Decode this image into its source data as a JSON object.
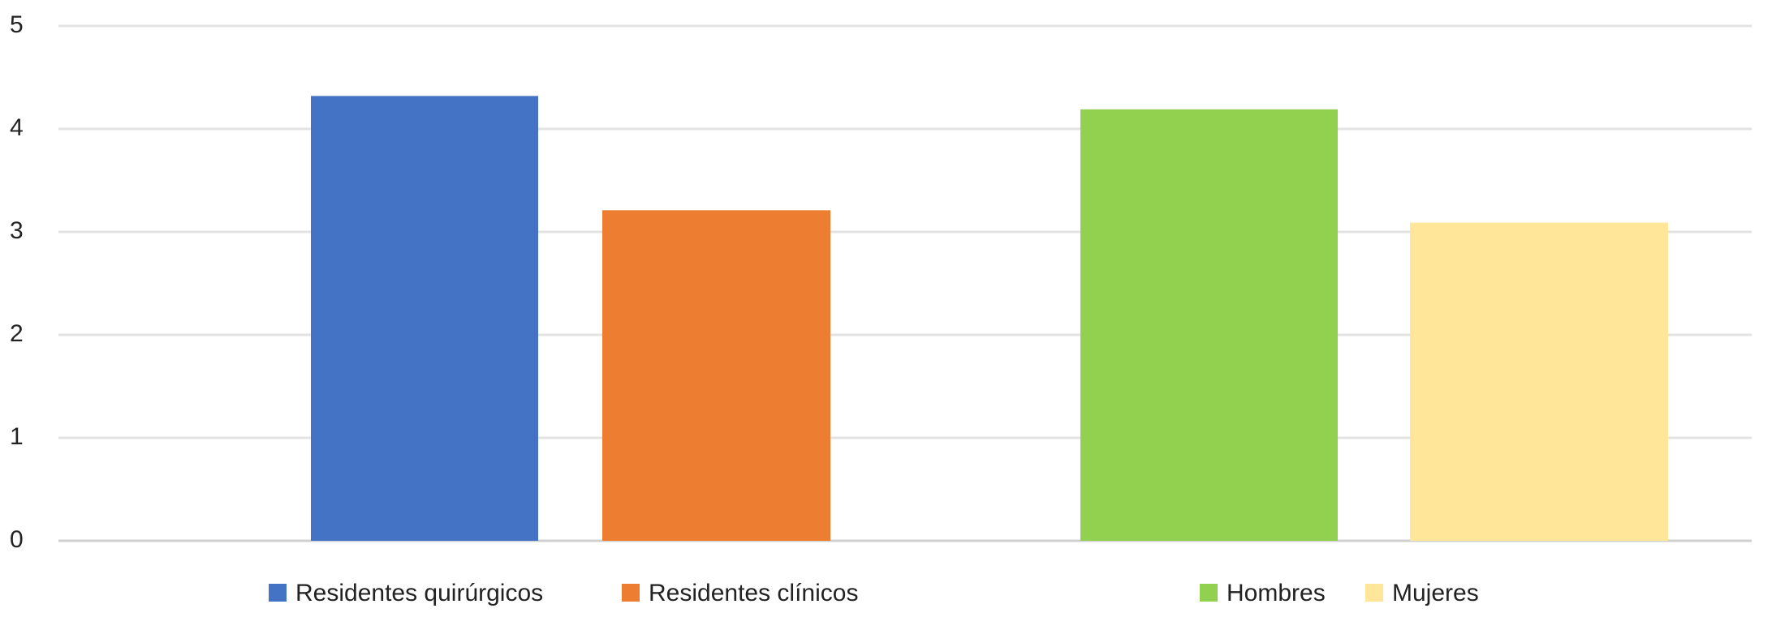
{
  "chart_data": {
    "type": "bar",
    "categories": [
      null,
      null
    ],
    "series": [
      {
        "name": "Residentes quirúrgicos",
        "color": "#4472c4",
        "values": [
          4.32,
          null
        ]
      },
      {
        "name": "Residentes clínicos",
        "color": "#ed7d31",
        "values": [
          3.21,
          null
        ]
      },
      {
        "name": "Hombres",
        "color": "#92d050",
        "values": [
          null,
          4.19
        ]
      },
      {
        "name": "Mujeres",
        "color": "#ffe699",
        "values": [
          null,
          3.09
        ]
      }
    ],
    "ylim": [
      0,
      5
    ],
    "yticks": [
      0,
      1,
      2,
      3,
      4,
      5
    ],
    "grid": true,
    "legend": "bottom"
  }
}
